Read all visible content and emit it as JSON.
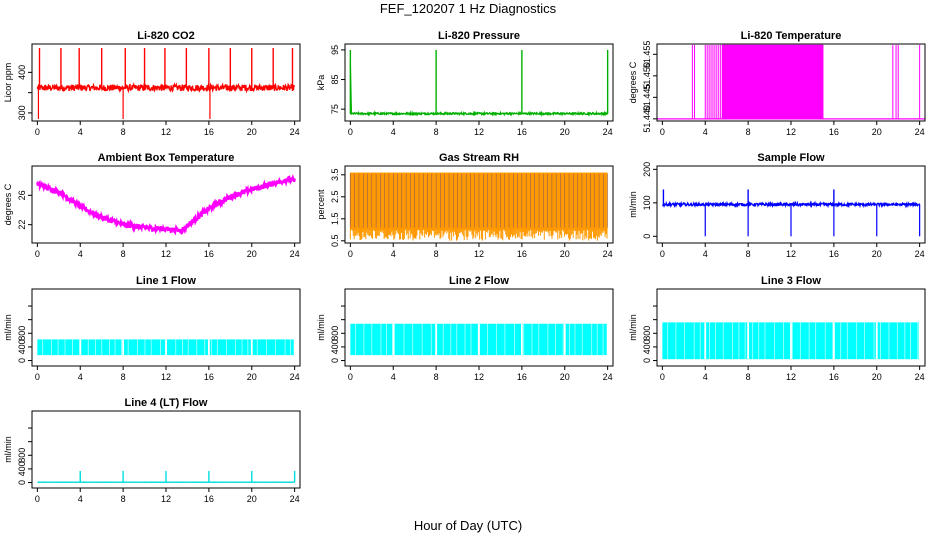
{
  "figure": {
    "title": "FEF_120207  1 Hz Diagnostics",
    "xlabel": "Hour of Day (UTC)"
  },
  "chart_data": [
    {
      "type": "line",
      "title": "Li-820 CO2",
      "ylabel": "Licor ppm",
      "color": "#ff0000",
      "x_ticks": [
        0,
        4,
        8,
        12,
        16,
        20,
        24
      ],
      "xlim": [
        -0.5,
        24.5
      ],
      "y_ticks": [
        300,
        350,
        400
      ],
      "y_tick_labels": [
        "300",
        "",
        "400"
      ],
      "ylim": [
        280,
        470
      ],
      "baseline": 362,
      "noise": 8,
      "spikes_up": [
        0.2,
        2.2,
        3.9,
        6.0,
        8.2,
        10.0,
        11.9,
        13.9,
        16.0,
        18.0,
        20.0,
        22.0,
        23.8
      ],
      "spike_up_value": 460,
      "spikes_down": [
        0.1,
        8.0,
        16.1
      ],
      "spike_down_value": 285
    },
    {
      "type": "line",
      "title": "Li-820 Pressure",
      "ylabel": "kPa",
      "color": "#00b000",
      "x_ticks": [
        0,
        4,
        8,
        12,
        16,
        20,
        24
      ],
      "xlim": [
        -0.5,
        24.5
      ],
      "y_ticks": [
        75,
        85,
        95
      ],
      "y_tick_labels": [
        "75",
        "85",
        "95"
      ],
      "ylim": [
        71,
        97
      ],
      "baseline": 73.5,
      "noise": 0.3,
      "spikes_up": [
        0.0,
        8.0,
        16.0,
        24.0
      ],
      "spike_up_value": 95
    },
    {
      "type": "line",
      "title": "Li-820 Temperature",
      "ylabel": "degrees C",
      "color": "#ff00ff",
      "x_ticks": [
        0,
        4,
        8,
        12,
        16,
        20,
        24
      ],
      "xlim": [
        -0.5,
        24.5
      ],
      "y_ticks": [
        51.44,
        51.445,
        51.45,
        51.455
      ],
      "y_tick_labels": [
        "51.440",
        "51.445",
        "51.450",
        "51.455"
      ],
      "ylim": [
        51.4395,
        51.4574
      ],
      "low_value": 51.44,
      "high_value": 51.4572,
      "dense_range": [
        5.6,
        15.0
      ],
      "sparse_range": [
        4.0,
        5.6
      ],
      "isolated": [
        2.8,
        3.0,
        21.5,
        21.8,
        22.0,
        24.0
      ]
    },
    {
      "type": "line",
      "title": "Ambient Box Temperature",
      "ylabel": "degrees C",
      "color": "#ff00ff",
      "x_ticks": [
        0,
        4,
        8,
        12,
        16,
        20,
        24
      ],
      "xlim": [
        -0.5,
        24.5
      ],
      "y_ticks": [
        22,
        26
      ],
      "y_tick_labels": [
        "22",
        "26"
      ],
      "ylim": [
        19.5,
        30
      ],
      "curve": [
        [
          0,
          27.5
        ],
        [
          2,
          26.5
        ],
        [
          4,
          24.5
        ],
        [
          6,
          23
        ],
        [
          8,
          22
        ],
        [
          10,
          21.6
        ],
        [
          12,
          21.4
        ],
        [
          13.5,
          21.2
        ],
        [
          14,
          21.9
        ],
        [
          16,
          24.2
        ],
        [
          18,
          25.8
        ],
        [
          20,
          26.8
        ],
        [
          22,
          27.6
        ],
        [
          23.5,
          28.2
        ],
        [
          24,
          28
        ]
      ],
      "noise": 0.35
    },
    {
      "type": "line",
      "title": "Gas Stream RH",
      "ylabel": "percent",
      "color": "#ff9900",
      "accent": "#0000cc",
      "x_ticks": [
        0,
        4,
        8,
        12,
        16,
        20,
        24
      ],
      "xlim": [
        -0.5,
        24.5
      ],
      "y_ticks": [
        0.5,
        1.5,
        2.5,
        3.5
      ],
      "y_tick_labels": [
        "0.5",
        "1.5",
        "2.5",
        "3.5"
      ],
      "ylim": [
        0.4,
        3.9
      ],
      "upper": 3.6,
      "lower": 1.0
    },
    {
      "type": "line",
      "title": "Sample Flow",
      "ylabel": "ml/min",
      "color": "#0000ff",
      "x_ticks": [
        0,
        4,
        8,
        12,
        16,
        20,
        24
      ],
      "xlim": [
        -0.5,
        24.5
      ],
      "y_ticks": [
        0,
        100,
        200
      ],
      "y_tick_labels": [
        "0",
        "100",
        "200"
      ],
      "ylim": [
        -20,
        210
      ],
      "baseline": 95,
      "noise": 4,
      "spikes_up": [
        0.1,
        8.0,
        16.0
      ],
      "spike_up_value": 140,
      "spikes_down": [
        4.0,
        8.0,
        12.0,
        16.0,
        20.0,
        24.0
      ],
      "spike_down_value": 0
    },
    {
      "type": "area",
      "title": "Line 1 Flow",
      "ylabel": "ml/min",
      "color": "#00ffff",
      "x_ticks": [
        0,
        4,
        8,
        12,
        16,
        20,
        24
      ],
      "xlim": [
        -0.5,
        24.5
      ],
      "y_ticks": [
        0,
        200,
        400,
        600,
        800
      ],
      "y_tick_labels": [
        "0",
        "400",
        "800"
      ],
      "ylim": [
        -80,
        1050
      ],
      "low": 80,
      "high": 310,
      "gaps": [
        4.0,
        8.0,
        12.0,
        16.0,
        20.0,
        24.0
      ]
    },
    {
      "type": "area",
      "title": "Line 2 Flow",
      "ylabel": "ml/min",
      "color": "#00ffff",
      "x_ticks": [
        0,
        4,
        8,
        12,
        16,
        20,
        24
      ],
      "xlim": [
        -0.5,
        24.5
      ],
      "y_ticks": [
        0,
        200,
        400,
        600,
        800
      ],
      "y_tick_labels": [
        "0",
        "400",
        "800"
      ],
      "ylim": [
        -80,
        1050
      ],
      "low": 80,
      "high": 540,
      "gaps": [
        4.0,
        8.0,
        12.0,
        16.0,
        20.0,
        24.0
      ]
    },
    {
      "type": "area",
      "title": "Line 3 Flow",
      "ylabel": "ml/min",
      "color": "#00ffff",
      "x_ticks": [
        0,
        4,
        8,
        12,
        16,
        20,
        24
      ],
      "xlim": [
        -0.5,
        24.5
      ],
      "y_ticks": [
        0,
        200,
        400,
        600,
        800
      ],
      "y_tick_labels": [
        "0",
        "400",
        "800"
      ],
      "ylim": [
        -80,
        1050
      ],
      "low": 20,
      "high": 560,
      "gaps": [
        4.0,
        8.0,
        12.0,
        16.0,
        20.0,
        24.0
      ]
    },
    {
      "type": "line",
      "title": "Line 4 (LT) Flow",
      "ylabel": "ml/min",
      "color": "#00dddd",
      "x_ticks": [
        0,
        4,
        8,
        12,
        16,
        20,
        24
      ],
      "xlim": [
        -0.5,
        24.5
      ],
      "y_ticks": [
        0,
        200,
        400,
        600,
        800
      ],
      "y_tick_labels": [
        "0",
        "400",
        "800"
      ],
      "ylim": [
        -80,
        1050
      ],
      "baseline": 5,
      "noise": 1,
      "spikes_up": [
        4.0,
        8.0,
        12.0,
        16.0,
        20.0,
        24.0
      ],
      "spike_up_value": 170
    }
  ]
}
